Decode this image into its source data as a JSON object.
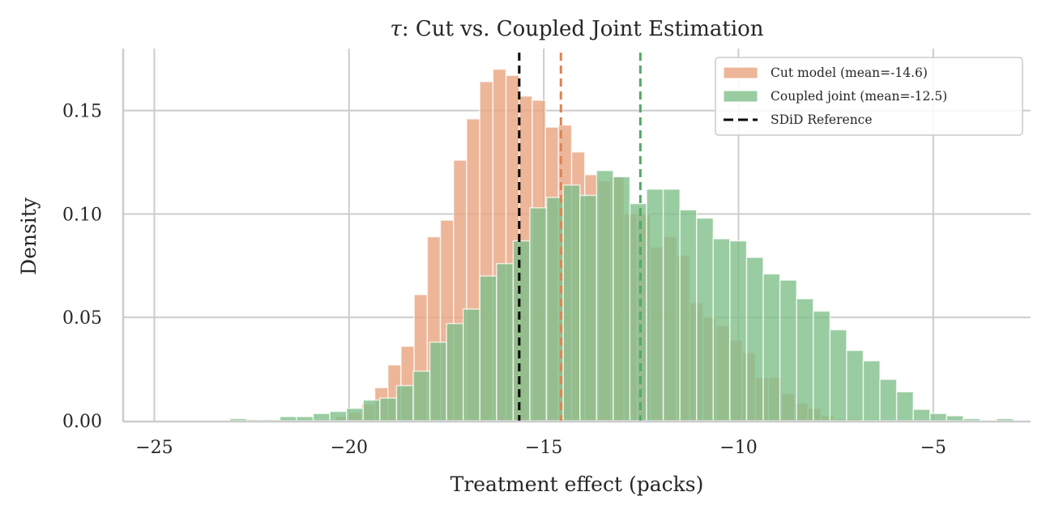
{
  "chart_data": {
    "type": "histogram",
    "title": "τ: Cut vs. Coupled Joint Estimation",
    "title_symbol": "τ",
    "title_rest": ": Cut vs. Coupled Joint Estimation",
    "xlabel": "Treatment effect (packs)",
    "ylabel": "Density",
    "xlim": [
      -25.8,
      -2.5
    ],
    "ylim": [
      0,
      0.18
    ],
    "xticks": [
      -25,
      -20,
      -15,
      -10,
      -5
    ],
    "xtick_labels": [
      "−25",
      "−20",
      "−15",
      "−10",
      "−5"
    ],
    "yticks": [
      0.0,
      0.05,
      0.1,
      0.15
    ],
    "ytick_labels": [
      "0.00",
      "0.05",
      "0.10",
      "0.15"
    ],
    "grid": true,
    "legend_position": "top-right",
    "series": [
      {
        "name": "Cut model (mean=-14.6)",
        "color": "#e8a47f",
        "opacity": 0.8,
        "bin_start": -20.35,
        "bin_width": 0.337,
        "densities": [
          0.002,
          0.004,
          0.008,
          0.016,
          0.027,
          0.036,
          0.061,
          0.089,
          0.097,
          0.126,
          0.146,
          0.164,
          0.17,
          0.167,
          0.157,
          0.155,
          0.142,
          0.143,
          0.13,
          0.119,
          0.116,
          0.118,
          0.1,
          0.1,
          0.084,
          0.089,
          0.08,
          0.057,
          0.05,
          0.046,
          0.039,
          0.033,
          0.021,
          0.021,
          0.013,
          0.0085,
          0.006,
          0.0025,
          0.001,
          0.001
        ],
        "mean": -14.6
      },
      {
        "name": "Coupled joint (mean=-12.5)",
        "color": "#7fbf8a",
        "opacity": 0.8,
        "bin_start": -23.06,
        "bin_width": 0.428,
        "densities": [
          0.001,
          0.0005,
          0.0005,
          0.002,
          0.002,
          0.0035,
          0.0045,
          0.006,
          0.01,
          0.011,
          0.017,
          0.024,
          0.038,
          0.047,
          0.054,
          0.07,
          0.076,
          0.087,
          0.103,
          0.108,
          0.114,
          0.109,
          0.121,
          0.118,
          0.105,
          0.112,
          0.112,
          0.102,
          0.098,
          0.088,
          0.087,
          0.079,
          0.071,
          0.068,
          0.059,
          0.053,
          0.044,
          0.034,
          0.029,
          0.02,
          0.014,
          0.0055,
          0.0035,
          0.0024,
          0.001,
          0,
          0.001
        ],
        "mean": -12.5
      }
    ],
    "vlines": [
      {
        "name": "SDiD Reference",
        "x": -15.63,
        "color": "#000000",
        "style": "dashed",
        "in_legend": true
      },
      {
        "name": "Cut model mean",
        "x": -14.56,
        "color": "#dd8452",
        "style": "dashed",
        "in_legend": false
      },
      {
        "name": "Coupled joint mean",
        "x": -12.52,
        "color": "#55a868",
        "style": "dashed",
        "in_legend": false
      }
    ],
    "legend": [
      {
        "label": "Cut model (mean=-14.6)",
        "kind": "patch",
        "color": "#e8a47f"
      },
      {
        "label": "Coupled joint (mean=-12.5)",
        "kind": "patch",
        "color": "#7fbf8a"
      },
      {
        "label": "SDiD Reference",
        "kind": "dashed-line",
        "color": "#000000"
      }
    ]
  }
}
